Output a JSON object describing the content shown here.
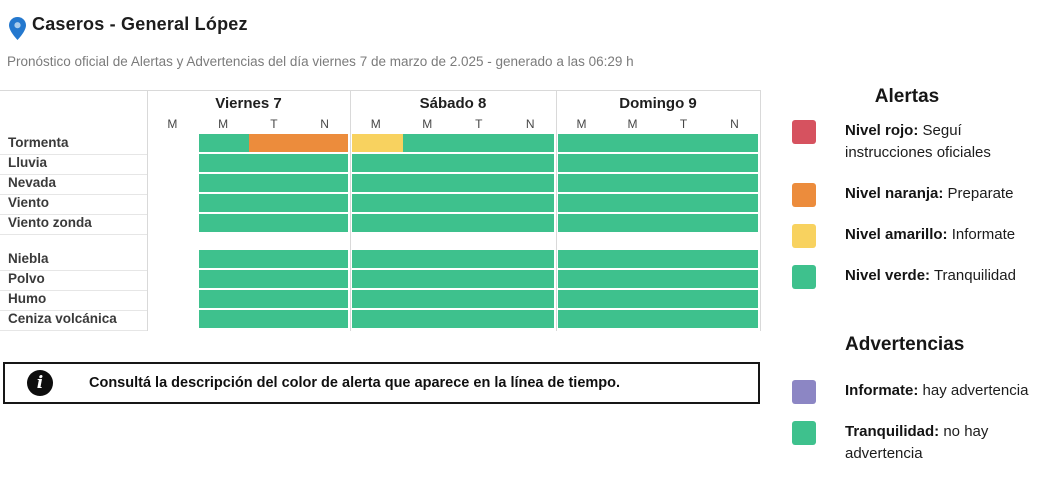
{
  "location": {
    "title": "Caseros - General López",
    "subtitle": "Pronóstico oficial de Alertas y Advertencias del día viernes 7 de marzo de 2.025 - generado a las 06:29 h"
  },
  "colors": {
    "verde": "#3EC18D",
    "naranja": "#EC8C3C",
    "amarillo": "#F8D25F",
    "rojo": "#D6525F",
    "informate": "#8C86C4",
    "pin_blue": "#2478CE"
  },
  "chart_data": {
    "type": "heatmap",
    "days": [
      {
        "label": "Viernes 7",
        "periods": [
          "M",
          "M",
          "T",
          "N"
        ]
      },
      {
        "label": "Sábado 8",
        "periods": [
          "M",
          "M",
          "T",
          "N"
        ]
      },
      {
        "label": "Domingo 9",
        "periods": [
          "M",
          "M",
          "T",
          "N"
        ]
      }
    ],
    "groups": [
      {
        "rows": [
          {
            "label": "Tormenta",
            "days": [
              [
                {
                  "from": 1,
                  "to": 2,
                  "color": "verde"
                },
                {
                  "from": 2,
                  "to": 4,
                  "color": "naranja"
                }
              ],
              [
                {
                  "from": 0,
                  "to": 1,
                  "color": "amarillo"
                },
                {
                  "from": 1,
                  "to": 4,
                  "color": "verde"
                }
              ],
              [
                {
                  "from": 0,
                  "to": 4,
                  "color": "verde"
                }
              ]
            ]
          },
          {
            "label": "Lluvia",
            "days": [
              [
                {
                  "from": 1,
                  "to": 4,
                  "color": "verde"
                }
              ],
              [
                {
                  "from": 0,
                  "to": 4,
                  "color": "verde"
                }
              ],
              [
                {
                  "from": 0,
                  "to": 4,
                  "color": "verde"
                }
              ]
            ]
          },
          {
            "label": "Nevada",
            "days": [
              [
                {
                  "from": 1,
                  "to": 4,
                  "color": "verde"
                }
              ],
              [
                {
                  "from": 0,
                  "to": 4,
                  "color": "verde"
                }
              ],
              [
                {
                  "from": 0,
                  "to": 4,
                  "color": "verde"
                }
              ]
            ]
          },
          {
            "label": "Viento",
            "days": [
              [
                {
                  "from": 1,
                  "to": 4,
                  "color": "verde"
                }
              ],
              [
                {
                  "from": 0,
                  "to": 4,
                  "color": "verde"
                }
              ],
              [
                {
                  "from": 0,
                  "to": 4,
                  "color": "verde"
                }
              ]
            ]
          },
          {
            "label": "Viento zonda",
            "days": [
              [
                {
                  "from": 1,
                  "to": 4,
                  "color": "verde"
                }
              ],
              [
                {
                  "from": 0,
                  "to": 4,
                  "color": "verde"
                }
              ],
              [
                {
                  "from": 0,
                  "to": 4,
                  "color": "verde"
                }
              ]
            ]
          }
        ]
      },
      {
        "rows": [
          {
            "label": "Niebla",
            "days": [
              [
                {
                  "from": 1,
                  "to": 4,
                  "color": "verde"
                }
              ],
              [
                {
                  "from": 0,
                  "to": 4,
                  "color": "verde"
                }
              ],
              [
                {
                  "from": 0,
                  "to": 4,
                  "color": "verde"
                }
              ]
            ]
          },
          {
            "label": "Polvo",
            "days": [
              [
                {
                  "from": 1,
                  "to": 4,
                  "color": "verde"
                }
              ],
              [
                {
                  "from": 0,
                  "to": 4,
                  "color": "verde"
                }
              ],
              [
                {
                  "from": 0,
                  "to": 4,
                  "color": "verde"
                }
              ]
            ]
          },
          {
            "label": "Humo",
            "days": [
              [
                {
                  "from": 1,
                  "to": 4,
                  "color": "verde"
                }
              ],
              [
                {
                  "from": 0,
                  "to": 4,
                  "color": "verde"
                }
              ],
              [
                {
                  "from": 0,
                  "to": 4,
                  "color": "verde"
                }
              ]
            ]
          },
          {
            "label": "Ceniza volcánica",
            "days": [
              [
                {
                  "from": 1,
                  "to": 4,
                  "color": "verde"
                }
              ],
              [
                {
                  "from": 0,
                  "to": 4,
                  "color": "verde"
                }
              ],
              [
                {
                  "from": 0,
                  "to": 4,
                  "color": "verde"
                }
              ]
            ]
          }
        ]
      }
    ]
  },
  "notice": {
    "text": "Consultá la descripción del color de alerta que aparece en la línea de tiempo."
  },
  "legend": {
    "alerts_title": "Alertas",
    "alerts": [
      {
        "color": "rojo",
        "label": "Nivel rojo:",
        "description": "Seguí instrucciones oficiales"
      },
      {
        "color": "naranja",
        "label": "Nivel naranja:",
        "description": "Preparate"
      },
      {
        "color": "amarillo",
        "label": "Nivel amarillo:",
        "description": "Informate"
      },
      {
        "color": "verde",
        "label": "Nivel verde:",
        "description": "Tranquilidad"
      }
    ],
    "warnings_title": "Advertencias",
    "warnings": [
      {
        "color": "informate",
        "label": "Informate:",
        "description": "hay advertencia"
      },
      {
        "color": "verde",
        "label": "Tranquilidad:",
        "description": "no hay advertencia"
      }
    ]
  }
}
